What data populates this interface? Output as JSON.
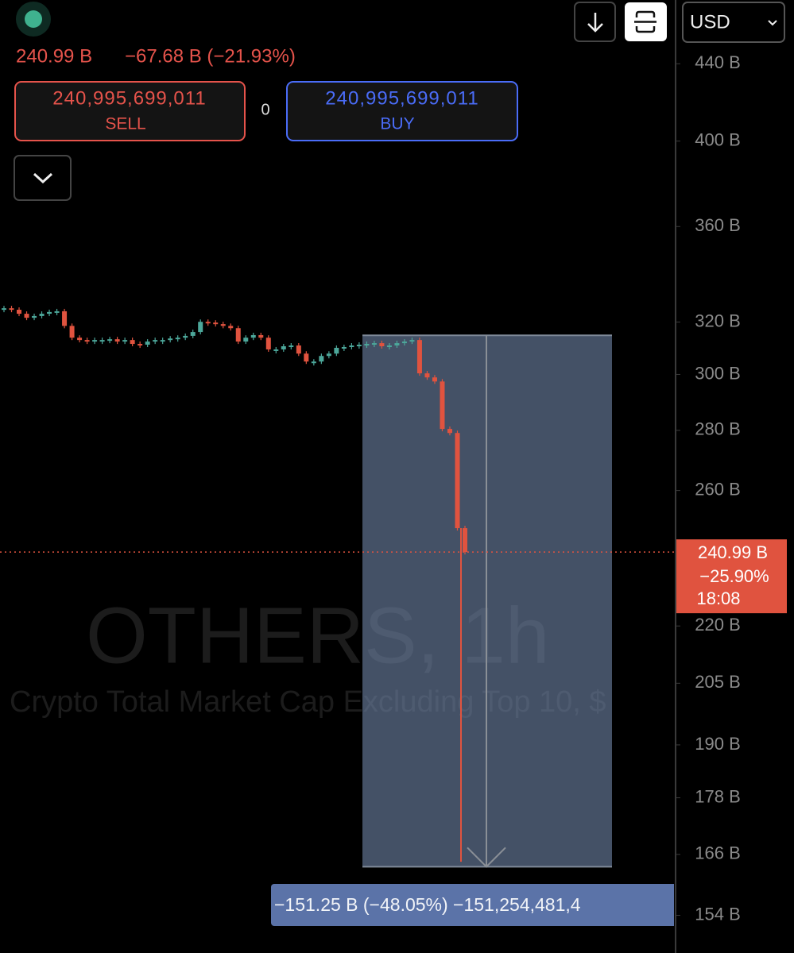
{
  "header": {
    "price": "240.99 B",
    "change": "−67.68 B (−21.93%)",
    "sell_price": "240,995,699,011",
    "sell_label": "SELL",
    "spread": "0",
    "buy_price": "240,995,699,011",
    "buy_label": "BUY",
    "currency": "USD"
  },
  "watermark": {
    "symbol": "OTHERS, 1h",
    "description": "Crypto Total Market Cap Excluding Top 10, $"
  },
  "chart_data": {
    "type": "candlestick",
    "log_scale": true,
    "ylim": [
      147,
      476
    ],
    "yticks": [
      {
        "value": 440,
        "label": "440 B"
      },
      {
        "value": 400,
        "label": "400 B"
      },
      {
        "value": 360,
        "label": "360 B"
      },
      {
        "value": 320,
        "label": "320 B"
      },
      {
        "value": 300,
        "label": "300 B"
      },
      {
        "value": 280,
        "label": "280 B"
      },
      {
        "value": 260,
        "label": "260 B"
      },
      {
        "value": 220,
        "label": "220 B"
      },
      {
        "value": 205,
        "label": "205 B"
      },
      {
        "value": 190,
        "label": "190 B"
      },
      {
        "value": 178,
        "label": "178 B"
      },
      {
        "value": 166,
        "label": "166 B"
      },
      {
        "value": 154,
        "label": "154 B"
      }
    ],
    "closes": [
      325.5,
      324.9,
      323.3,
      321.7,
      322.4,
      323.3,
      324.0,
      324.3,
      318.5,
      313.9,
      313.0,
      312.4,
      313.0,
      313.0,
      313.3,
      312.4,
      313.0,
      311.5,
      311.2,
      312.4,
      313.0,
      313.0,
      313.6,
      313.9,
      314.6,
      316.1,
      320.1,
      319.8,
      319.2,
      318.5,
      317.6,
      312.4,
      313.9,
      314.9,
      313.9,
      309.4,
      309.4,
      310.6,
      310.9,
      307.8,
      304.8,
      304.8,
      306.9,
      307.8,
      310.0,
      310.3,
      310.9,
      311.2,
      311.5,
      311.8,
      310.6,
      310.9,
      311.8,
      312.4,
      313.0,
      300.4,
      298.9,
      297.4,
      280.5,
      279.1,
      248.2,
      240.99
    ],
    "low": 164.5,
    "up_color": "#4ca79a",
    "down_color": "#e0533f",
    "last_price": 240.99,
    "last_label": {
      "price": "240.99 B",
      "change": "−25.90%",
      "countdown": "18:08"
    },
    "measure": {
      "start": 314.8,
      "end": 163.5,
      "label": "−151.25 B (−48.05%)  −151,254,481,4"
    }
  }
}
